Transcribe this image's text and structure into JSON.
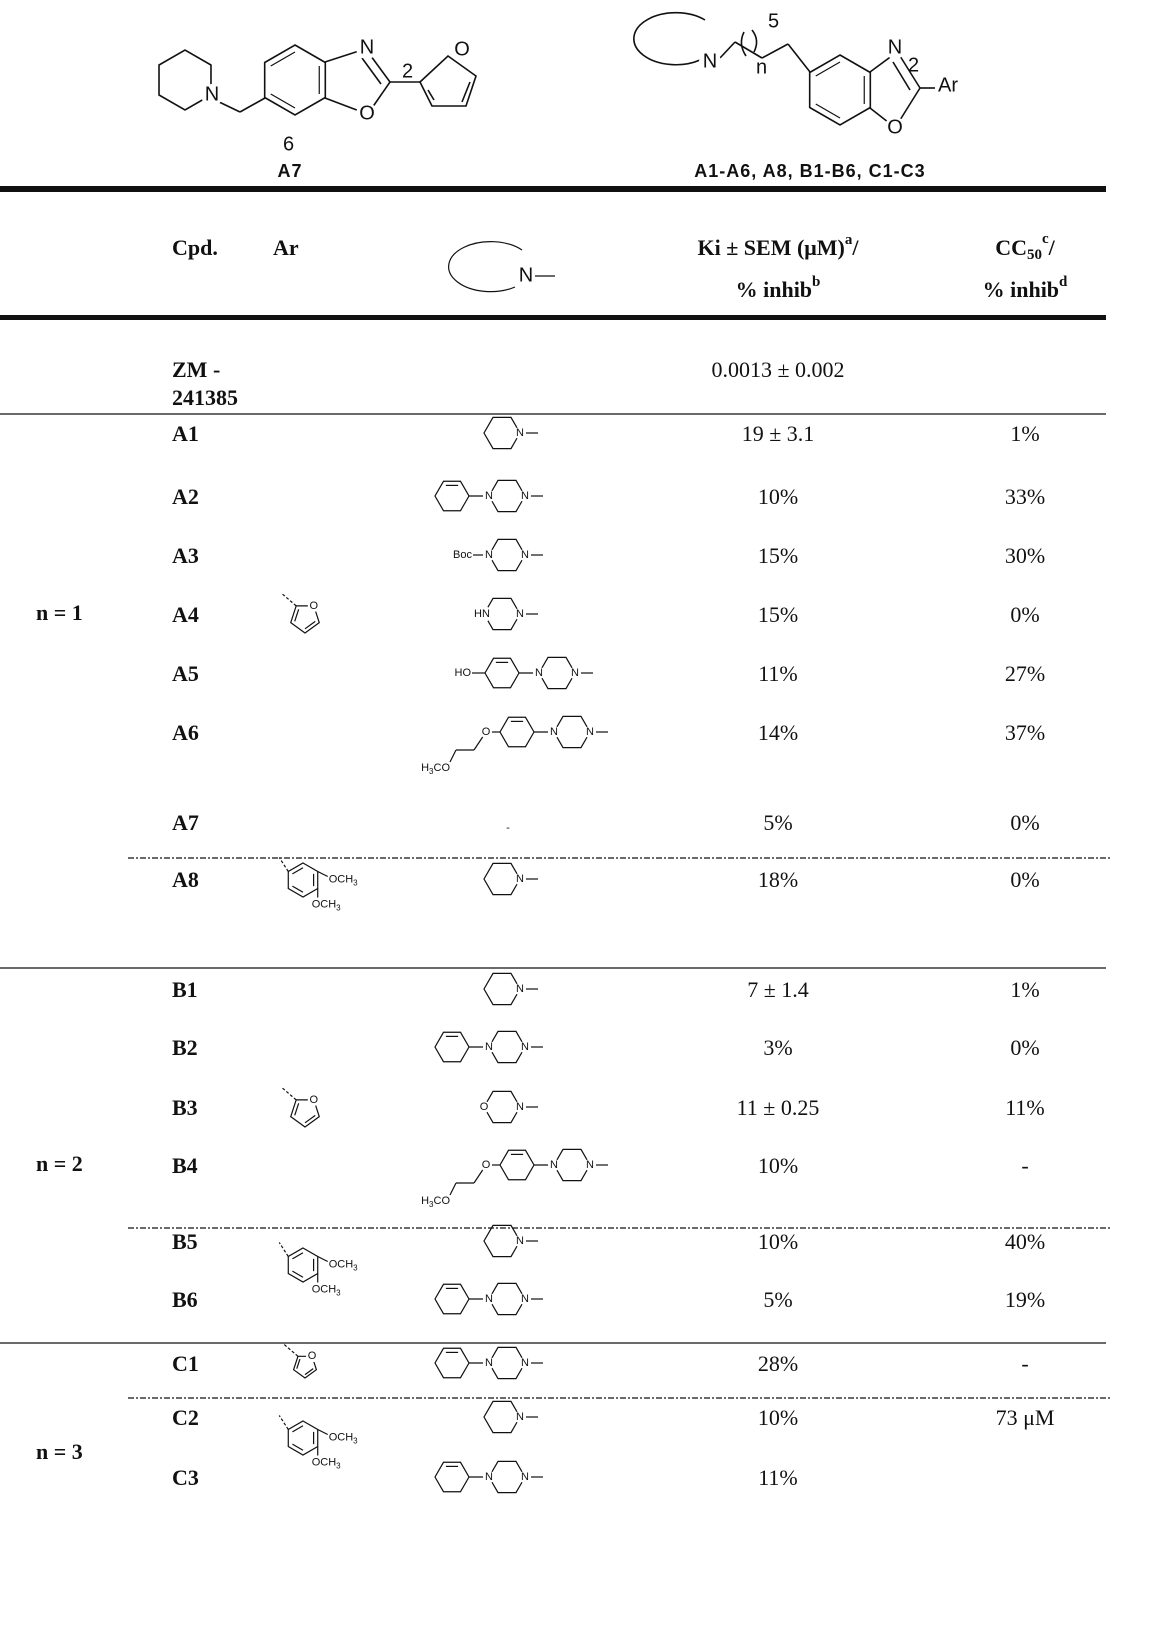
{
  "scaffolds": {
    "left": {
      "label": "A7",
      "pos": "6",
      "c2": "2"
    },
    "right": {
      "label": "A1-A6, A8, B1-B6, C1-C3",
      "c2": "2",
      "pos": "5",
      "index": "n",
      "ar": "Ar"
    }
  },
  "structure_text": {
    "N": "N",
    "O": "O",
    "Boc": "Boc",
    "HN": "HN",
    "HO": "HO",
    "H": "H",
    "CO": "CO",
    "OCH": "OCH",
    "sub3": "3"
  },
  "table": {
    "header": {
      "cpd": "Cpd.",
      "ar": "Ar",
      "ki": {
        "text": "Ki ± SEM (μM)",
        "sup": "a",
        "tail": "/"
      },
      "ki_line2": {
        "text": "% inhib",
        "sup": "b"
      },
      "cc": {
        "text": "CC",
        "sub": "50",
        "sup": "c",
        "tail": "/"
      },
      "cc_line2": {
        "text": "% inhib",
        "sup": "d"
      }
    },
    "reference": {
      "cpd": [
        "ZM -",
        "241385"
      ],
      "ki": "0.0013  ±  0.002"
    },
    "groups": [
      {
        "label": "n = 1",
        "rows": [
          {
            "cpd": "A1",
            "ki": "19  ± 3.1",
            "cc": "1%"
          },
          {
            "cpd": "A2",
            "ki": "10%",
            "cc": "33%"
          },
          {
            "cpd": "A3",
            "ki": "15%",
            "cc": "30%"
          },
          {
            "cpd": "A4",
            "ki": "15%",
            "cc": "0%"
          },
          {
            "cpd": "A5",
            "ki": "11%",
            "cc": "27%"
          },
          {
            "cpd": "A6",
            "ki": "14%",
            "cc": "37%"
          },
          {
            "cpd": "A7",
            "amine": "-",
            "ki": "5%",
            "cc": "0%"
          },
          {
            "cpd": "A8",
            "ki": "18%",
            "cc": "0%"
          }
        ]
      },
      {
        "label": "n = 2",
        "rows": [
          {
            "cpd": "B1",
            "ki": "7  ± 1.4",
            "cc": "1%"
          },
          {
            "cpd": "B2",
            "ki": "3%",
            "cc": "0%"
          },
          {
            "cpd": "B3",
            "ki": "11  ± 0.25",
            "cc": "11%"
          },
          {
            "cpd": "B4",
            "ki": "10%",
            "cc": "-"
          },
          {
            "cpd": "B5",
            "ki": "10%",
            "cc": "40%"
          },
          {
            "cpd": "B6",
            "ki": "5%",
            "cc": "19%"
          }
        ]
      },
      {
        "label": "n = 3",
        "rows": [
          {
            "cpd": "C1",
            "ki": "28%",
            "cc": "-"
          },
          {
            "cpd": "C2",
            "ki": "10%",
            "cc": "73 μM"
          },
          {
            "cpd": "C3",
            "ki": "11%"
          }
        ]
      }
    ]
  }
}
